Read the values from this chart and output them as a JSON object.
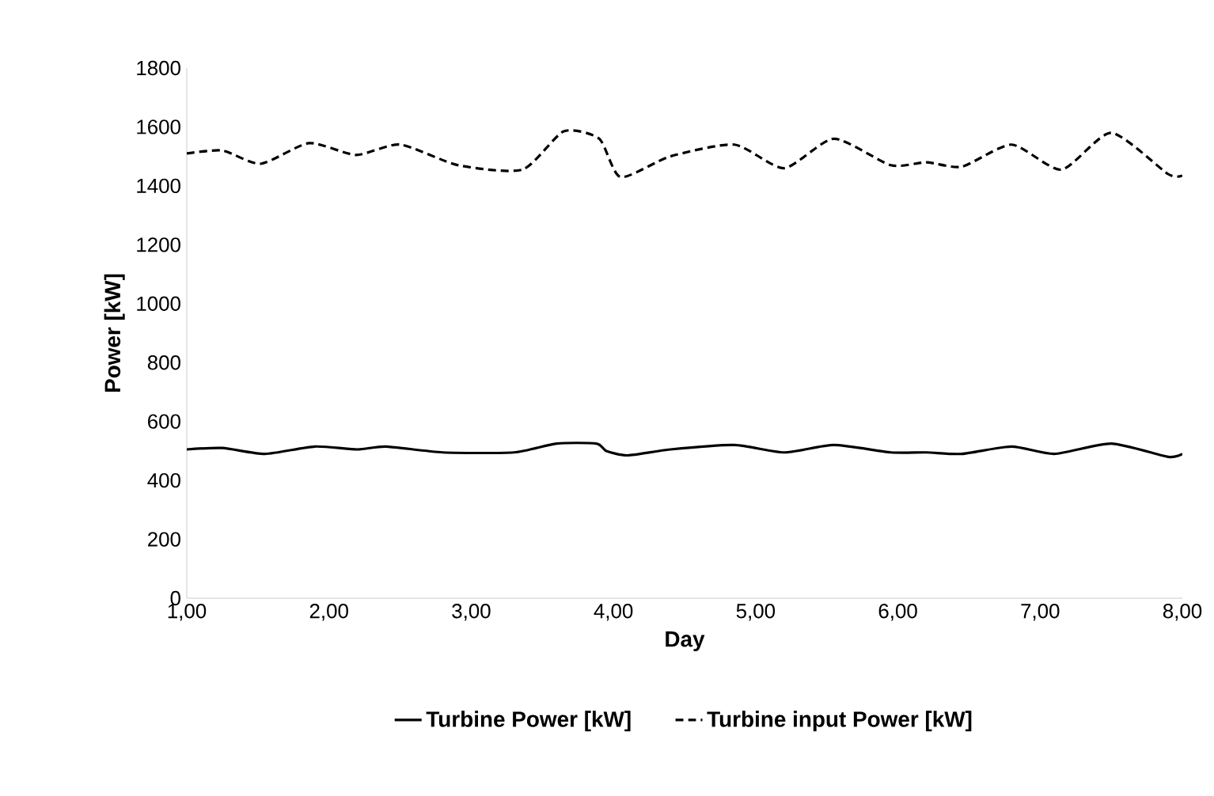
{
  "chart_data": {
    "type": "line",
    "xlabel": "Day",
    "ylabel": "Power [kW]",
    "xlim": [
      1,
      8
    ],
    "xticks": [
      {
        "value": 1,
        "label": "1,00"
      },
      {
        "value": 2,
        "label": "2,00"
      },
      {
        "value": 3,
        "label": "3,00"
      },
      {
        "value": 4,
        "label": "4,00"
      },
      {
        "value": 5,
        "label": "5,00"
      },
      {
        "value": 6,
        "label": "6,00"
      },
      {
        "value": 7,
        "label": "7,00"
      },
      {
        "value": 8,
        "label": "8,00"
      }
    ],
    "ylim": [
      0,
      1800
    ],
    "yticks": [
      0,
      200,
      400,
      600,
      800,
      1000,
      1200,
      1400,
      1600,
      1800
    ],
    "grid": false,
    "legend": "bottom",
    "marker": "none",
    "series": [
      {
        "name": "Turbine Power [kW]",
        "color": "#000000",
        "line_style": "solid",
        "x": [
          1,
          1.25,
          1.55,
          1.9,
          2.2,
          2.4,
          2.8,
          3.3,
          3.6,
          3.88,
          3.95,
          4.1,
          4.4,
          4.85,
          5.2,
          5.55,
          5.95,
          6.2,
          6.45,
          6.8,
          7.1,
          7.5,
          7.9,
          8
        ],
        "values": [
          505,
          510,
          490,
          515,
          505,
          515,
          495,
          495,
          525,
          525,
          500,
          485,
          505,
          520,
          495,
          520,
          495,
          495,
          490,
          515,
          490,
          525,
          480,
          490
        ]
      },
      {
        "name": "Turbine input Power [kW]",
        "color": "#000000",
        "line_style": "dashed",
        "x": [
          1,
          1.25,
          1.52,
          1.86,
          2.19,
          2.5,
          2.91,
          3.36,
          3.65,
          3.9,
          4.05,
          4.4,
          4.85,
          5.2,
          5.55,
          5.95,
          6.2,
          6.45,
          6.8,
          7.15,
          7.5,
          7.9,
          8
        ],
        "values": [
          1510,
          1520,
          1475,
          1545,
          1505,
          1540,
          1470,
          1455,
          1585,
          1560,
          1430,
          1500,
          1540,
          1460,
          1560,
          1470,
          1480,
          1465,
          1540,
          1455,
          1580,
          1440,
          1435
        ]
      }
    ]
  }
}
